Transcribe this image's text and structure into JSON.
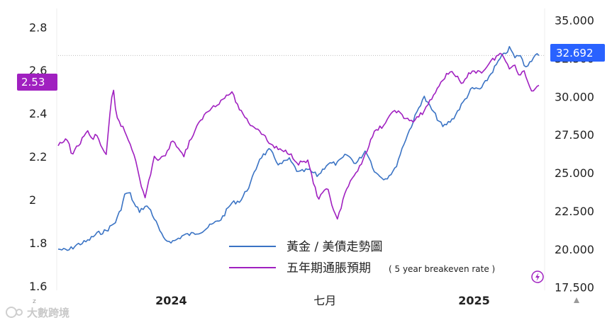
{
  "chart_data": {
    "type": "line",
    "title": "",
    "x_ticks": [
      "2024",
      "七月",
      "2025"
    ],
    "left_axis": {
      "ticks": [
        "2.8",
        "2.6",
        "2.4",
        "2.2",
        "2",
        "1.8",
        "1.6"
      ],
      "range": [
        1.58,
        2.86
      ]
    },
    "right_axis": {
      "ticks": [
        "35.000",
        "32.500",
        "30.000",
        "27.500",
        "25.000",
        "22.500",
        "20.000",
        "17.500"
      ],
      "range": [
        17.3,
        35.4
      ]
    },
    "series": [
      {
        "name": "黃金 / 美債走勢圖",
        "axis": "right",
        "color": "#3a73c4",
        "t": [
          0.0,
          0.02,
          0.04,
          0.06,
          0.08,
          0.1,
          0.11,
          0.12,
          0.13,
          0.14,
          0.15,
          0.16,
          0.17,
          0.18,
          0.19,
          0.2,
          0.22,
          0.24,
          0.26,
          0.28,
          0.3,
          0.32,
          0.34,
          0.36,
          0.38,
          0.4,
          0.42,
          0.44,
          0.46,
          0.48,
          0.5,
          0.52,
          0.54,
          0.56,
          0.58,
          0.6,
          0.62,
          0.64,
          0.66,
          0.68,
          0.7,
          0.72,
          0.74,
          0.76,
          0.78,
          0.8,
          0.82,
          0.84,
          0.86,
          0.88,
          0.9,
          0.92,
          0.94,
          0.95,
          0.96,
          0.97,
          0.98,
          0.99,
          1.0
        ],
        "values": [
          20.0,
          19.9,
          20.3,
          20.5,
          21.0,
          21.2,
          21.5,
          21.8,
          22.6,
          23.7,
          23.6,
          22.8,
          22.5,
          22.8,
          22.7,
          22.0,
          20.6,
          20.5,
          20.9,
          21.0,
          21.2,
          21.6,
          22.0,
          23.0,
          23.2,
          24.3,
          26.0,
          26.5,
          25.5,
          25.9,
          25.0,
          25.2,
          24.8,
          25.6,
          25.6,
          26.2,
          25.6,
          26.5,
          25.0,
          24.6,
          25.2,
          27.0,
          28.5,
          30.0,
          29.0,
          28.0,
          28.5,
          29.5,
          30.5,
          30.5,
          31.5,
          32.5,
          33.2,
          32.5,
          32.8,
          32.0,
          32.2,
          32.7,
          32.69
        ]
      },
      {
        "name": "五年期通脹預期",
        "name_sub": "( 5 year breakeven rate )",
        "axis": "left",
        "color": "#a020c0",
        "t": [
          0.0,
          0.02,
          0.03,
          0.04,
          0.05,
          0.06,
          0.07,
          0.08,
          0.09,
          0.1,
          0.11,
          0.115,
          0.12,
          0.13,
          0.14,
          0.16,
          0.18,
          0.2,
          0.21,
          0.22,
          0.24,
          0.26,
          0.28,
          0.3,
          0.32,
          0.34,
          0.36,
          0.38,
          0.4,
          0.42,
          0.44,
          0.46,
          0.48,
          0.5,
          0.52,
          0.54,
          0.56,
          0.58,
          0.6,
          0.62,
          0.64,
          0.66,
          0.68,
          0.7,
          0.72,
          0.74,
          0.76,
          0.78,
          0.8,
          0.82,
          0.84,
          0.86,
          0.88,
          0.9,
          0.92,
          0.94,
          0.95,
          0.96,
          0.97,
          0.98,
          0.99,
          0.995,
          1.0
        ],
        "values": [
          2.25,
          2.28,
          2.2,
          2.25,
          2.28,
          2.32,
          2.28,
          2.3,
          2.25,
          2.2,
          2.45,
          2.51,
          2.4,
          2.35,
          2.31,
          2.2,
          2.0,
          2.2,
          2.18,
          2.2,
          2.28,
          2.2,
          2.3,
          2.38,
          2.43,
          2.46,
          2.5,
          2.41,
          2.35,
          2.32,
          2.26,
          2.23,
          2.22,
          2.17,
          2.18,
          2.0,
          2.05,
          1.9,
          2.05,
          2.12,
          2.22,
          2.32,
          2.35,
          2.42,
          2.38,
          2.36,
          2.41,
          2.48,
          2.56,
          2.6,
          2.53,
          2.6,
          2.59,
          2.64,
          2.68,
          2.61,
          2.63,
          2.57,
          2.6,
          2.52,
          2.5,
          2.53,
          2.53
        ]
      }
    ],
    "badges": {
      "left": "2.53",
      "right": "32.692"
    },
    "legend": [
      {
        "label": "黃金 / 美債走勢圖",
        "color": "#3a73c4"
      },
      {
        "label": "五年期通脹預期",
        "sub": "( 5 year breakeven rate )",
        "color": "#a020c0"
      }
    ],
    "gridlines": false
  },
  "watermark": "大數跨境",
  "icons": {
    "bolt": "bolt-icon",
    "logo": "logo-icon"
  }
}
